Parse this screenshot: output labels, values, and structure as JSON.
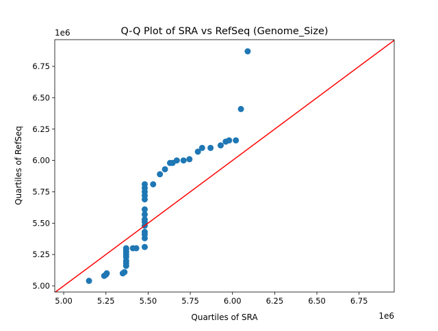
{
  "chart_data": {
    "type": "scatter",
    "title": "Q-Q Plot of SRA vs RefSeq (Genome_Size)",
    "xlabel": "Quartiles of SRA",
    "ylabel": "Quartiles of RefSeq",
    "x_offset_label": "1e6",
    "y_offset_label": "1e6",
    "xlim": [
      4.947,
      6.958
    ],
    "ylim": [
      4.951,
      6.963
    ],
    "xticks": [
      5.0,
      5.25,
      5.5,
      5.75,
      6.0,
      6.25,
      6.5,
      6.75
    ],
    "xtick_labels": [
      "5.00",
      "5.25",
      "5.50",
      "5.75",
      "6.00",
      "6.25",
      "6.50",
      "6.75"
    ],
    "yticks": [
      5.0,
      5.25,
      5.5,
      5.75,
      6.0,
      6.25,
      6.5,
      6.75
    ],
    "ytick_labels": [
      "5.00",
      "5.25",
      "5.50",
      "5.75",
      "6.00",
      "6.25",
      "6.50",
      "6.75"
    ],
    "grid": false,
    "point_color": "#1f77b4",
    "line_color": "#ff0000",
    "reference_line": "y=x",
    "points": [
      [
        5.15,
        5.04
      ],
      [
        5.24,
        5.08
      ],
      [
        5.25,
        5.09
      ],
      [
        5.255,
        5.1
      ],
      [
        5.35,
        5.1
      ],
      [
        5.36,
        5.11
      ],
      [
        5.37,
        5.16
      ],
      [
        5.37,
        5.18
      ],
      [
        5.37,
        5.2
      ],
      [
        5.37,
        5.23
      ],
      [
        5.37,
        5.25
      ],
      [
        5.37,
        5.27
      ],
      [
        5.37,
        5.29
      ],
      [
        5.37,
        5.3
      ],
      [
        5.41,
        5.3
      ],
      [
        5.43,
        5.3
      ],
      [
        5.48,
        5.31
      ],
      [
        5.48,
        5.38
      ],
      [
        5.48,
        5.41
      ],
      [
        5.48,
        5.43
      ],
      [
        5.48,
        5.48
      ],
      [
        5.48,
        5.51
      ],
      [
        5.48,
        5.53
      ],
      [
        5.48,
        5.57
      ],
      [
        5.48,
        5.61
      ],
      [
        5.48,
        5.69
      ],
      [
        5.48,
        5.72
      ],
      [
        5.48,
        5.75
      ],
      [
        5.48,
        5.78
      ],
      [
        5.48,
        5.81
      ],
      [
        5.53,
        5.81
      ],
      [
        5.57,
        5.89
      ],
      [
        5.6,
        5.93
      ],
      [
        5.63,
        5.98
      ],
      [
        5.645,
        5.98
      ],
      [
        5.67,
        6.0
      ],
      [
        5.71,
        6.0
      ],
      [
        5.745,
        6.01
      ],
      [
        5.795,
        6.07
      ],
      [
        5.82,
        6.1
      ],
      [
        5.87,
        6.1
      ],
      [
        5.93,
        6.12
      ],
      [
        5.96,
        6.15
      ],
      [
        5.98,
        6.16
      ],
      [
        6.02,
        6.16
      ],
      [
        6.05,
        6.41
      ],
      [
        6.09,
        6.87
      ]
    ]
  }
}
